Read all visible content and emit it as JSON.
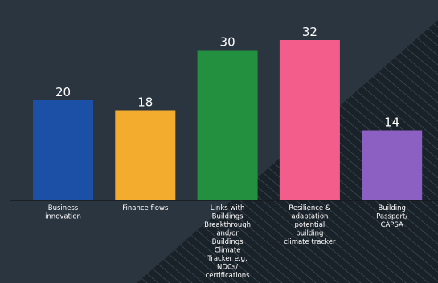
{
  "chart_data": {
    "type": "bar",
    "categories": [
      "Business innovation",
      "Finance flows",
      "Links with Buildings Breakthrough and/or Buildings Climate Tracker e.g. NDCs/ certifications",
      "Resilience & adaptation potential building climate tracker",
      "Building Passport/ CAPSA"
    ],
    "category_lines": [
      [
        "Business",
        "innovation"
      ],
      [
        "Finance flows"
      ],
      [
        "Links with",
        "Buildings",
        "Breakthrough",
        "and/or",
        "Buildings",
        "Climate",
        "Tracker e.g.",
        "NDCs/",
        "certifications"
      ],
      [
        "Resilience &",
        "adaptation",
        "potential",
        "building",
        "climate tracker"
      ],
      [
        "Building",
        "Passport/",
        "CAPSA"
      ]
    ],
    "values": [
      20,
      18,
      30,
      32,
      14
    ],
    "colors": [
      "#1c4fa6",
      "#f4ac2e",
      "#22903e",
      "#f25d8c",
      "#8c5fc2"
    ],
    "title": "",
    "xlabel": "",
    "ylabel": "",
    "ylim": [
      0,
      35
    ],
    "grid": false,
    "legend": "none"
  },
  "theme": {
    "background": "#2a3540",
    "background_dark": "#1a2229",
    "text": "#ffffff",
    "axis": "#14191e"
  }
}
